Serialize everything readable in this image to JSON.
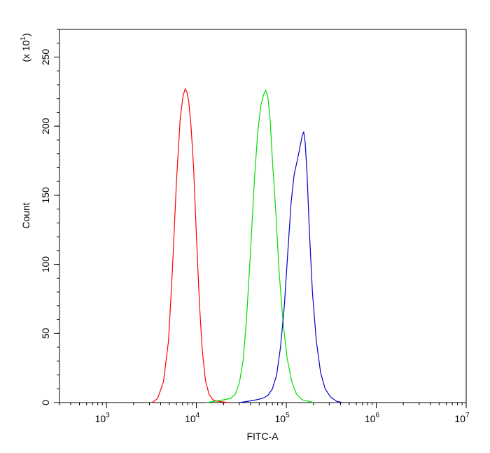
{
  "chart_data": {
    "type": "line",
    "title": "",
    "xlabel": "FITC-A",
    "ylabel": "Count",
    "y_multiplier_label": "(x 10^1)",
    "x_scale": "log",
    "xlim": [
      300,
      10000000
    ],
    "ylim": [
      0,
      270
    ],
    "x_ticks": [
      {
        "base": "10",
        "exp": "3",
        "value": 1000
      },
      {
        "base": "10",
        "exp": "4",
        "value": 10000
      },
      {
        "base": "10",
        "exp": "5",
        "value": 100000
      },
      {
        "base": "10",
        "exp": "6",
        "value": 1000000
      },
      {
        "base": "10",
        "exp": "7",
        "value": 10000000
      }
    ],
    "y_ticks": [
      0,
      50,
      100,
      150,
      200,
      250
    ],
    "grid": false,
    "legend": "none",
    "series": [
      {
        "color": "#ff0000",
        "x": [
          3200,
          3700,
          4300,
          4900,
          5400,
          6000,
          6600,
          7100,
          7500,
          7800,
          8200,
          8700,
          9300,
          10000,
          10800,
          11600,
          12600,
          13800,
          15300,
          17000,
          19500,
          23000
        ],
        "y": [
          0,
          3,
          15,
          45,
          95,
          160,
          205,
          222,
          227,
          225,
          218,
          200,
          170,
          120,
          72,
          38,
          16,
          6,
          2,
          1,
          0.5,
          0
        ]
      },
      {
        "color": "#00dd00",
        "x": [
          13000,
          16000,
          20000,
          24000,
          27000,
          30000,
          33000,
          36000,
          40000,
          44000,
          48000,
          52000,
          56000,
          59000,
          62000,
          66000,
          70000,
          76000,
          83000,
          92000,
          102000,
          115000,
          130000,
          150000,
          175000,
          200000
        ],
        "y": [
          0,
          1,
          2,
          3,
          6,
          14,
          30,
          60,
          110,
          160,
          195,
          215,
          223,
          226,
          222,
          205,
          175,
          140,
          95,
          58,
          32,
          15,
          6,
          2,
          1,
          0
        ]
      },
      {
        "color": "#0000cc",
        "x": [
          30000,
          38000,
          46000,
          54000,
          62000,
          70000,
          78000,
          86000,
          95000,
          104000,
          113000,
          122000,
          132000,
          142000,
          150000,
          156000,
          162000,
          170000,
          180000,
          195000,
          215000,
          240000,
          270000,
          310000,
          360000,
          420000
        ],
        "y": [
          0,
          1,
          2,
          3,
          5,
          10,
          20,
          40,
          70,
          110,
          145,
          165,
          175,
          185,
          193,
          196,
          188,
          165,
          125,
          80,
          45,
          22,
          10,
          4,
          1,
          0
        ]
      }
    ]
  }
}
